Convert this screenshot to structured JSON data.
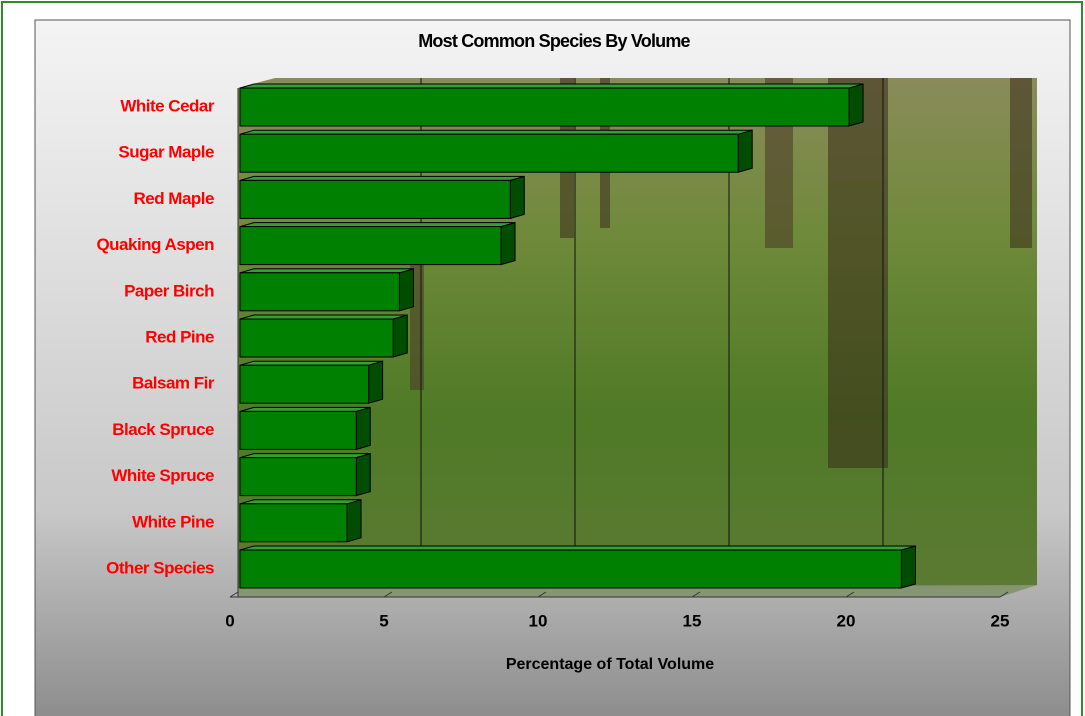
{
  "chart_data": {
    "type": "bar",
    "orientation": "horizontal",
    "title": "Most Common Species By Volume",
    "xlabel": "Percentage of Total Volume",
    "categories": [
      "White Cedar",
      "Sugar Maple",
      "Red Maple",
      "Quaking Aspen",
      "Paper Birch",
      "Red Pine",
      "Balsam Fir",
      "Black Spruce",
      "White Spruce",
      "White Pine",
      "Other Species"
    ],
    "values": [
      20.1,
      16.5,
      9.1,
      8.8,
      5.5,
      5.3,
      4.5,
      4.1,
      4.1,
      3.8,
      21.8
    ],
    "color": "#008000",
    "label_color": "#ff0000",
    "xlim": [
      0,
      25
    ],
    "xticks": [
      0,
      5,
      10,
      15,
      20,
      25
    ],
    "grid": true
  }
}
